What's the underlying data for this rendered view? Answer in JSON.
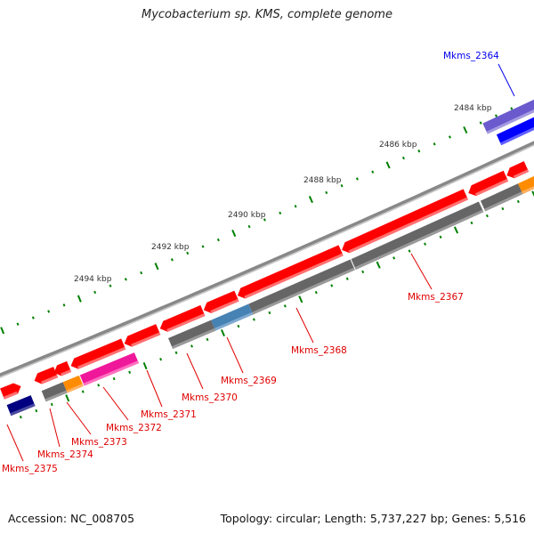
{
  "title": "Mycobacterium sp. KMS, complete genome",
  "footer": {
    "accession": "Accession: NC_008705",
    "topology": "Topology: circular; Length: 5,737,227 bp; Genes: 5,516"
  },
  "scale_labels": [
    "2494 kbp",
    "2492 kbp",
    "2490 kbp",
    "2488 kbp",
    "2486 kbp",
    "2484 kbp"
  ],
  "gene_labels": {
    "mkms_2364": "Mkms_2364",
    "mkms_2367": "Mkms_2367",
    "mkms_2368": "Mkms_2368",
    "mkms_2369": "Mkms_2369",
    "mkms_2370": "Mkms_2370",
    "mkms_2371": "Mkms_2371",
    "mkms_2372": "Mkms_2372",
    "mkms_2373": "Mkms_2373",
    "mkms_2374": "Mkms_2374",
    "mkms_2375": "Mkms_2375"
  },
  "colors": {
    "forward_gene": "#ff0000",
    "other_gene": "#666666",
    "label_red": "#e00000",
    "label_blue": "#0000ee",
    "tick": "#008000",
    "backbone": "#888888"
  }
}
